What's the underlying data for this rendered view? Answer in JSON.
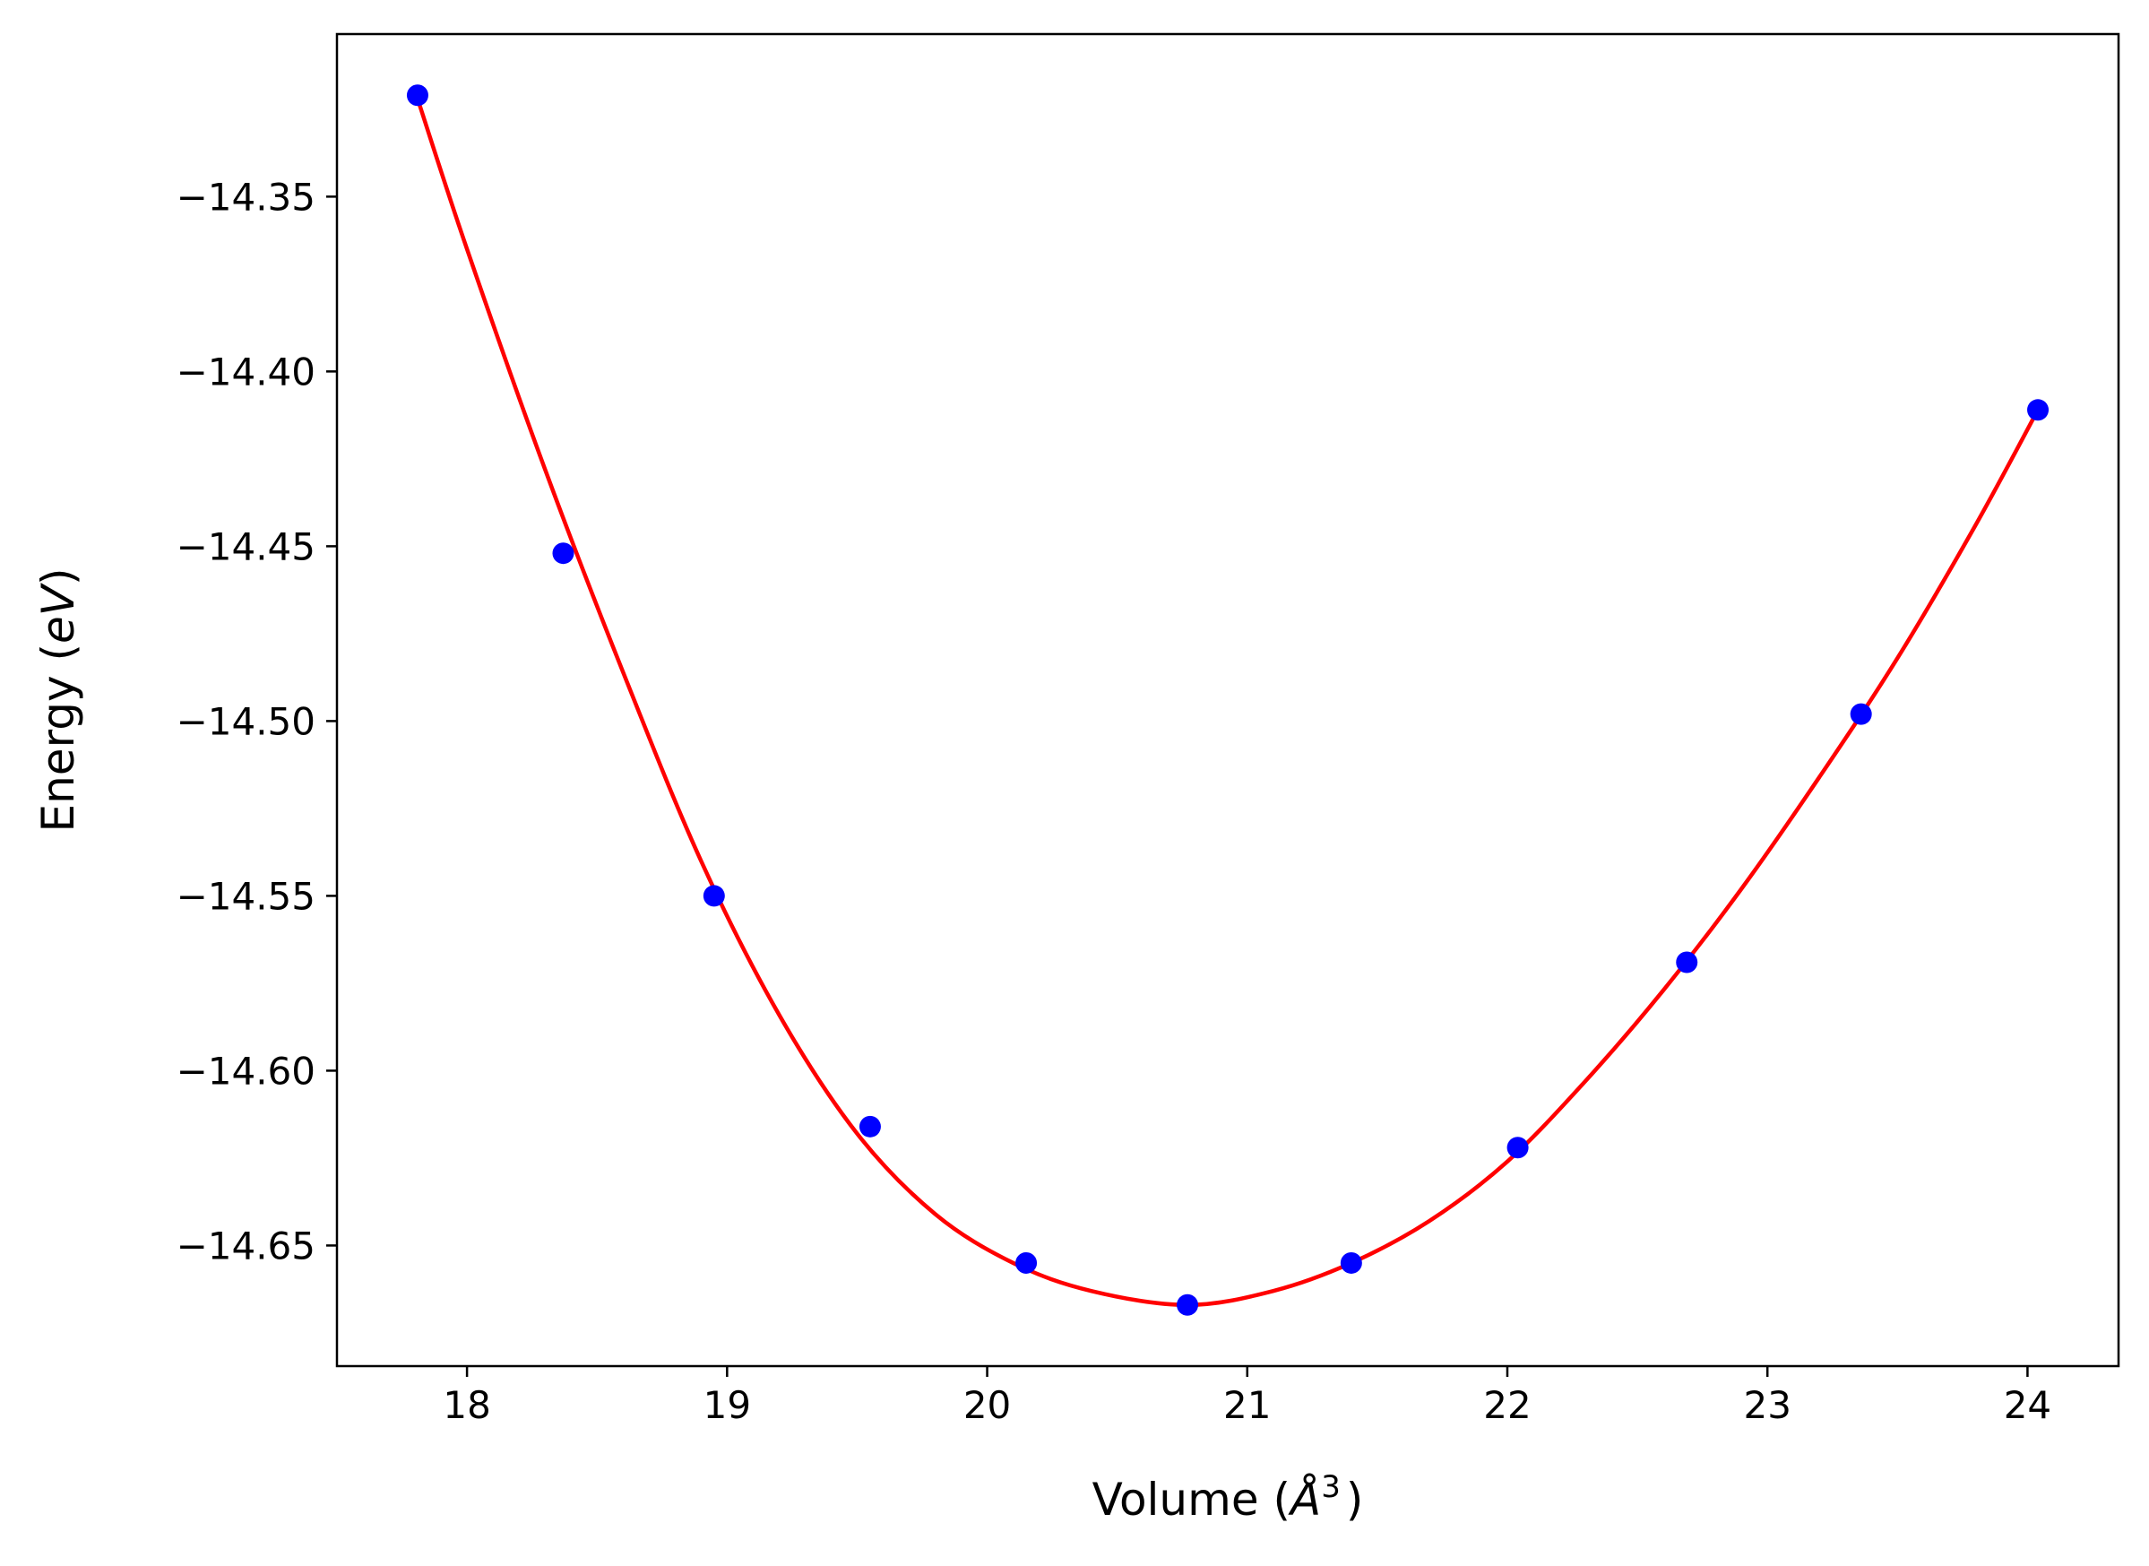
{
  "chart_data": {
    "type": "line",
    "title": "",
    "xlabel": "Volume (Å³)",
    "xlabel_parts": {
      "prefix": "Volume (",
      "unit": "Å",
      "superscript": "3",
      "suffix": ")"
    },
    "ylabel": "Energy (eV)",
    "ylabel_parts": {
      "prefix": "Energy (",
      "unit": "eV",
      "suffix": ")"
    },
    "xlim": [
      17.5,
      24.35
    ],
    "ylim": [
      -14.6845,
      -14.3035
    ],
    "xticks": [
      18,
      19,
      20,
      21,
      22,
      23,
      24
    ],
    "xtick_labels": [
      "18",
      "19",
      "20",
      "21",
      "22",
      "23",
      "24"
    ],
    "yticks": [
      -14.35,
      -14.4,
      -14.45,
      -14.5,
      -14.55,
      -14.6,
      -14.65
    ],
    "ytick_labels": [
      "−14.35",
      "−14.40",
      "−14.45",
      "−14.50",
      "−14.55",
      "−14.60",
      "−14.65"
    ],
    "grid": false,
    "legend": "none",
    "series": [
      {
        "kind": "scatter",
        "color": "#0000ff",
        "x": [
          17.81,
          18.37,
          18.95,
          19.55,
          20.15,
          20.77,
          21.4,
          22.04,
          22.69,
          23.36,
          24.04
        ],
        "y": [
          -14.321,
          -14.452,
          -14.55,
          -14.616,
          -14.655,
          -14.667,
          -14.655,
          -14.622,
          -14.569,
          -14.498,
          -14.411
        ]
      },
      {
        "kind": "fit-line",
        "color": "#ff0000",
        "model": "quadratic",
        "x": [
          17.81,
          18.0,
          18.3,
          18.6,
          18.9,
          19.2,
          19.5,
          19.8,
          20.1,
          20.4,
          20.77,
          21.1,
          21.4,
          21.7,
          22.0,
          22.3,
          22.6,
          22.9,
          23.2,
          23.5,
          23.8,
          24.04
        ],
        "y": [
          -14.322,
          -14.365,
          -14.428,
          -14.486,
          -14.54,
          -14.584,
          -14.618,
          -14.641,
          -14.655,
          -14.663,
          -14.667,
          -14.663,
          -14.655,
          -14.643,
          -14.626,
          -14.603,
          -14.577,
          -14.548,
          -14.516,
          -14.482,
          -14.444,
          -14.411
        ]
      }
    ]
  }
}
